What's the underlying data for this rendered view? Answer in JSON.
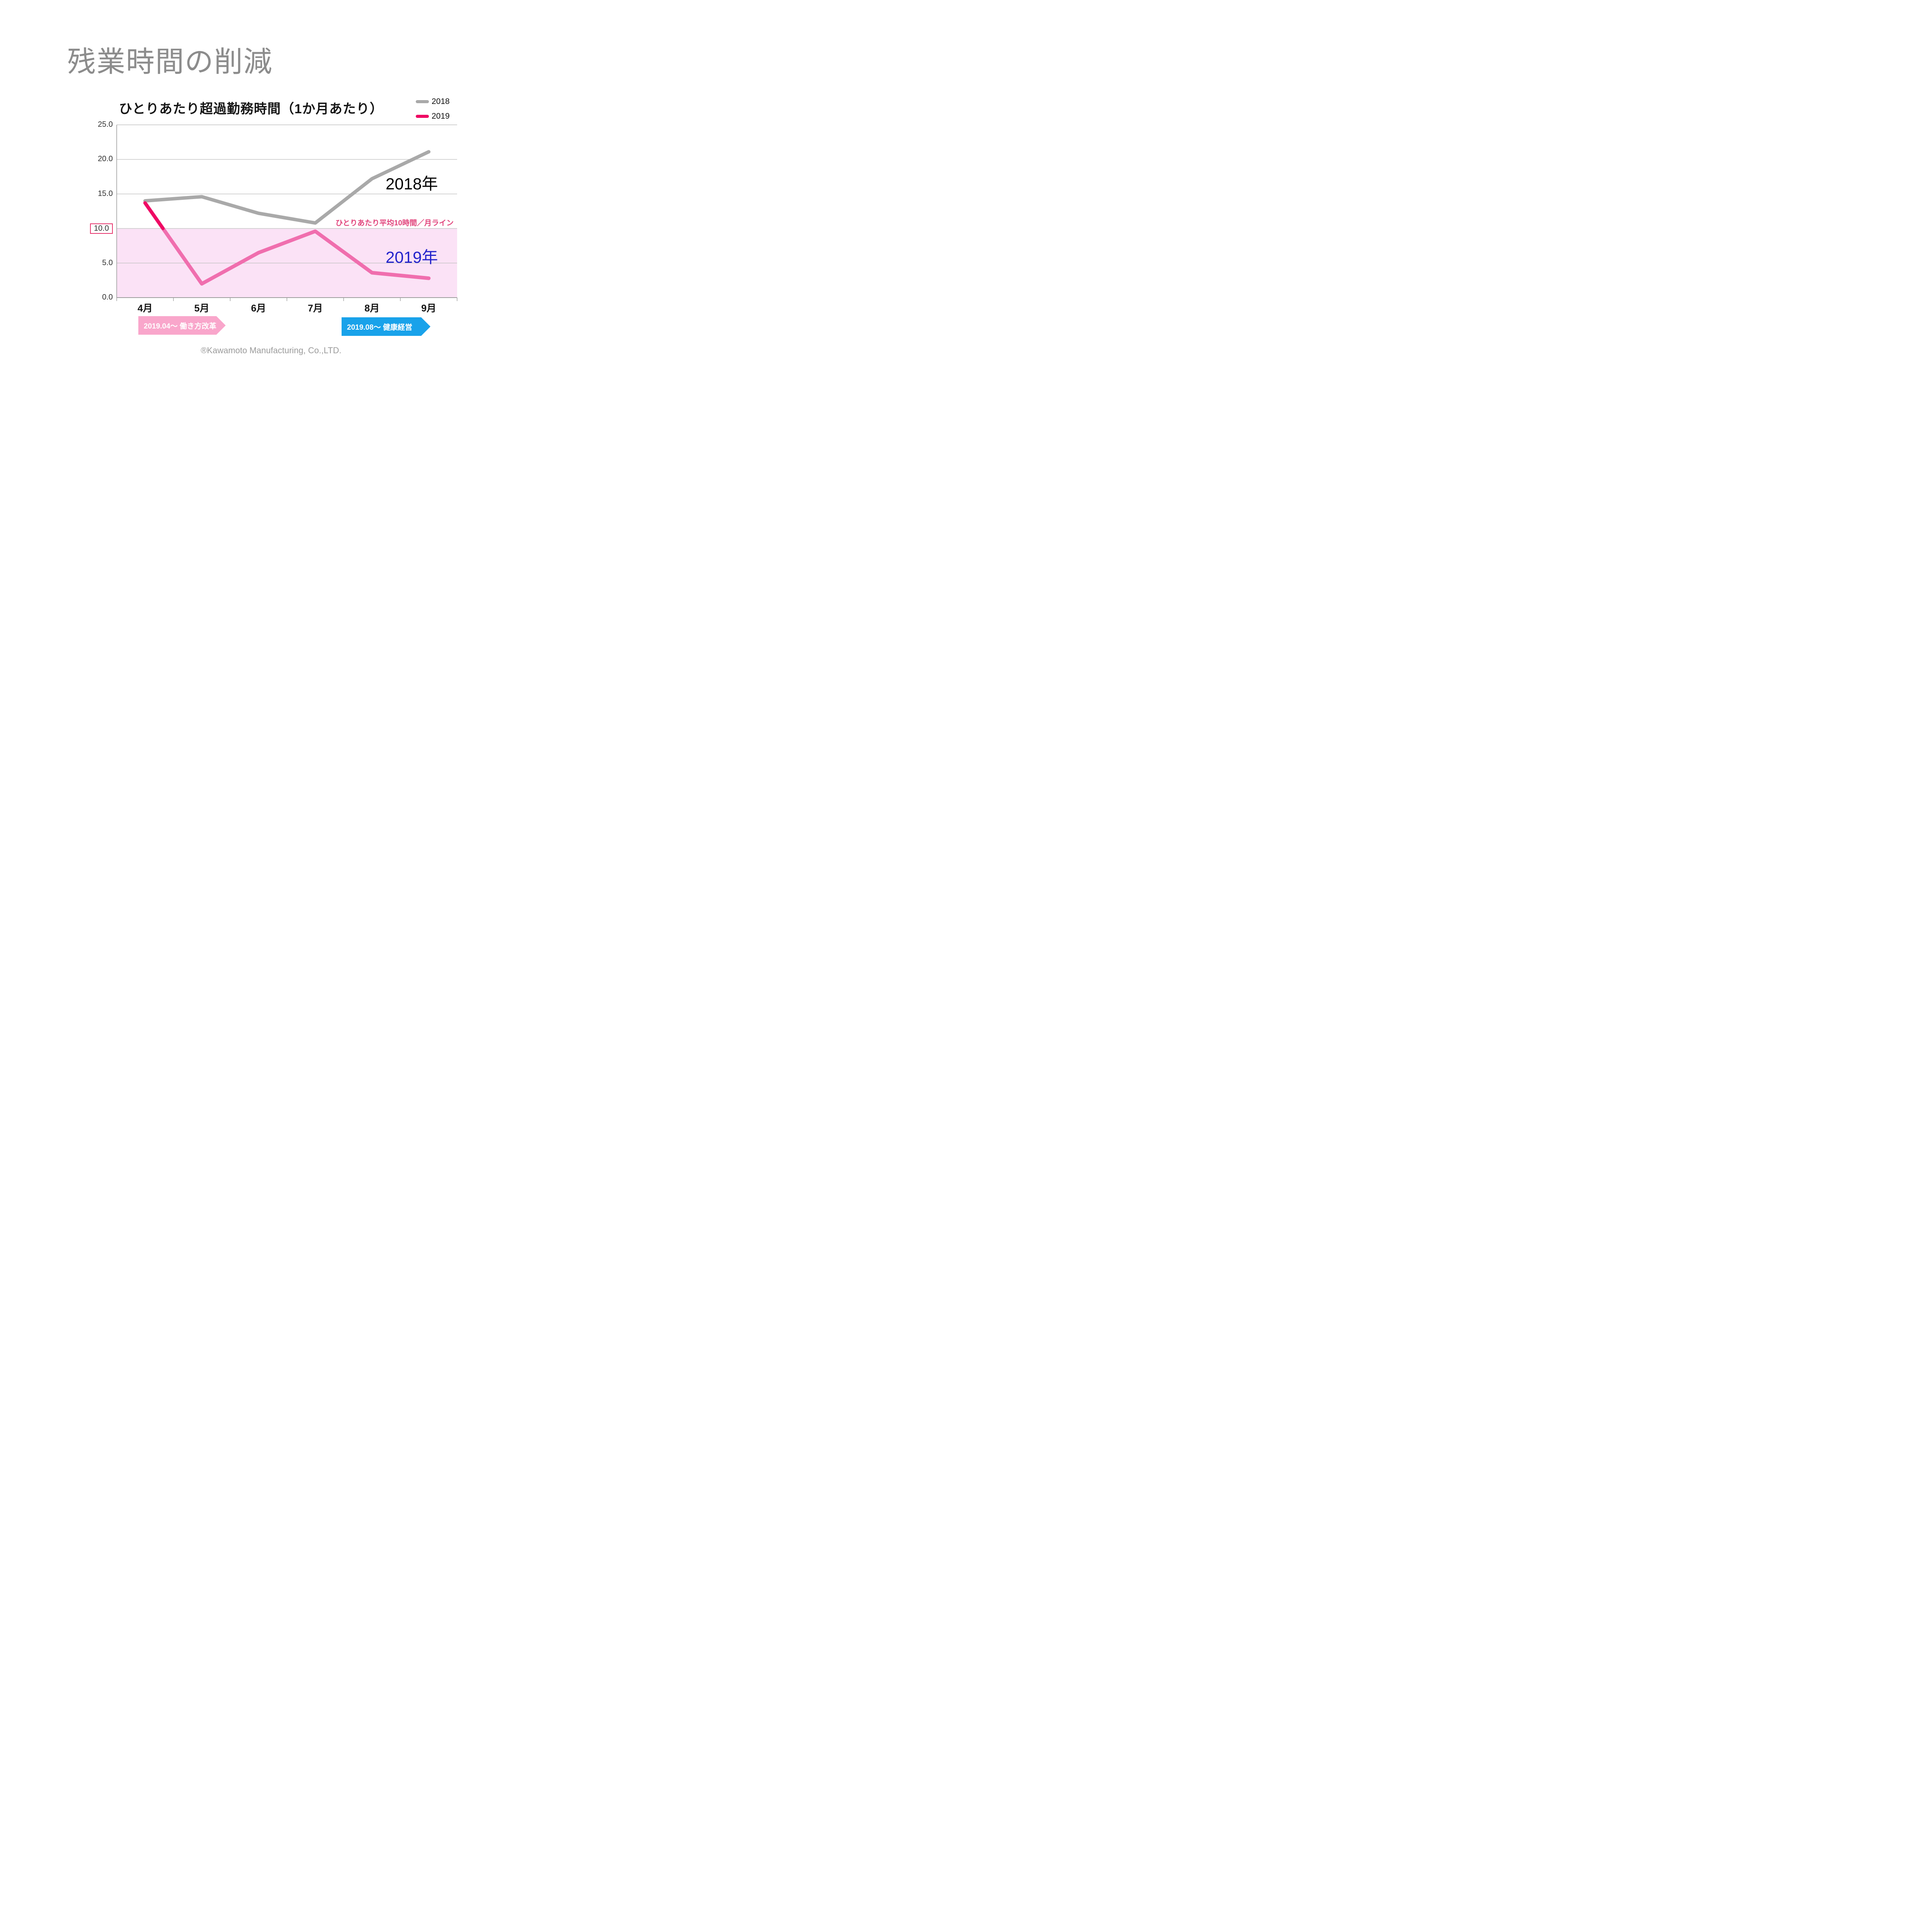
{
  "slide": {
    "title": "残業時間の削減",
    "footer": "®Kawamoto Manufacturing, Co.,LTD."
  },
  "chart": {
    "title": "ひとりあたり超過勤務時間（1か月あたり）",
    "year_labels": [
      {
        "text": "2018年",
        "color": "#000000"
      },
      {
        "text": "2019年",
        "color": "#2323CC"
      }
    ]
  },
  "chart_data": {
    "type": "line",
    "title": "ひとりあたり超過勤務時間（1か月あたり）",
    "categories": [
      "4月",
      "5月",
      "6月",
      "7月",
      "8月",
      "9月"
    ],
    "series": [
      {
        "name": "2018",
        "color": "#A9A9A9",
        "values": [
          14.0,
          14.6,
          12.2,
          10.8,
          17.2,
          21.1
        ]
      },
      {
        "name": "2019",
        "color": "#F06EAE",
        "highlight_color": "#EF0A63",
        "values": [
          13.7,
          2.0,
          6.5,
          9.6,
          3.6,
          2.8
        ]
      }
    ],
    "ylim": [
      0,
      25
    ],
    "yticks": [
      "25.0",
      "20.0",
      "15.0",
      "10.0",
      "5.0",
      "0.0"
    ],
    "ytick_values": [
      25,
      20,
      15,
      10,
      5,
      0
    ],
    "highlighted_ytick": "10.0",
    "band": {
      "from": 0,
      "to": 10,
      "color": "#FBE2F6",
      "label": "ひとりあたり平均10時間／月ライン",
      "label_color": "#E1437B"
    },
    "grid": "horizontal",
    "legend_position": "top-right",
    "axis_color": "#9E9E9E",
    "gridline_color": "#C2C2C2"
  },
  "banners": [
    {
      "text": "2019.04～  働き方改革",
      "color": "#F9A6CB"
    },
    {
      "text": "2019.08～  健康経営",
      "color": "#19A2EA"
    }
  ]
}
